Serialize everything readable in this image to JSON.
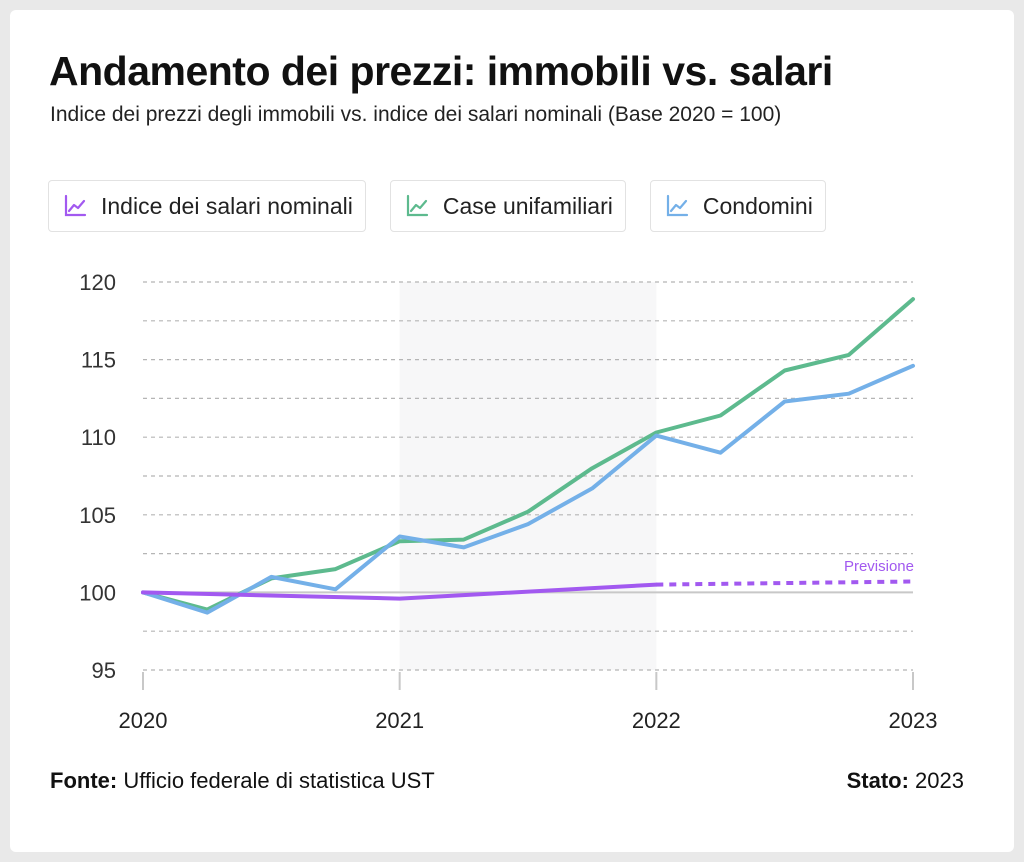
{
  "title": "Andamento dei prezzi: immobili vs. salari",
  "subtitle": "Indice dei prezzi degli immobili vs. indice dei salari nominali (Base 2020 = 100)",
  "legend": [
    {
      "label": "Indice dei salari nominali",
      "color": "#a259f0",
      "icon": "line-chart-icon"
    },
    {
      "label": "Case unifamiliari",
      "color": "#5dba8e",
      "icon": "line-chart-icon"
    },
    {
      "label": "Condomini",
      "color": "#74b0e8",
      "icon": "line-chart-icon"
    }
  ],
  "footer": {
    "source_label": "Fonte:",
    "source_text": "Ufficio federale di statistica UST",
    "status_label": "Stato:",
    "status_text": "2023"
  },
  "chart_data": {
    "type": "line",
    "title": "Andamento dei prezzi: immobili vs. salari",
    "subtitle": "Indice dei prezzi degli immobili vs. indice dei salari nominali (Base 2020 = 100)",
    "xlabel": "",
    "ylabel": "",
    "xlim": [
      2020,
      2023
    ],
    "ylim": [
      95,
      120
    ],
    "x_ticks": [
      "2020",
      "2021",
      "2022",
      "2023"
    ],
    "y_ticks": [
      95,
      100,
      105,
      110,
      115,
      120
    ],
    "grid": "horizontal dashed",
    "baseline": 100,
    "legend_position": "top",
    "annotation": "Previsione",
    "series": [
      {
        "name": "Case unifamiliari",
        "color": "#5dba8e",
        "x": [
          2020,
          2020.25,
          2020.5,
          2020.75,
          2021,
          2021.25,
          2021.5,
          2021.75,
          2022,
          2022.25,
          2022.5,
          2022.75,
          2023
        ],
        "values": [
          100,
          98.9,
          100.9,
          101.5,
          103.3,
          103.4,
          105.2,
          108.0,
          110.3,
          111.4,
          114.3,
          115.3,
          118.9
        ]
      },
      {
        "name": "Condomini",
        "color": "#74b0e8",
        "x": [
          2020,
          2020.25,
          2020.5,
          2020.75,
          2021,
          2021.25,
          2021.5,
          2021.75,
          2022,
          2022.25,
          2022.5,
          2022.75,
          2023
        ],
        "values": [
          100,
          98.7,
          101.0,
          100.2,
          103.6,
          102.9,
          104.4,
          106.7,
          110.1,
          109.0,
          112.3,
          112.8,
          114.6
        ]
      },
      {
        "name": "Indice dei salari nominali",
        "color": "#a259f0",
        "x": [
          2020,
          2021,
          2022
        ],
        "values": [
          100,
          99.6,
          100.5
        ],
        "forecast": {
          "x": [
            2022,
            2023
          ],
          "values": [
            100.5,
            100.7
          ]
        }
      }
    ]
  }
}
